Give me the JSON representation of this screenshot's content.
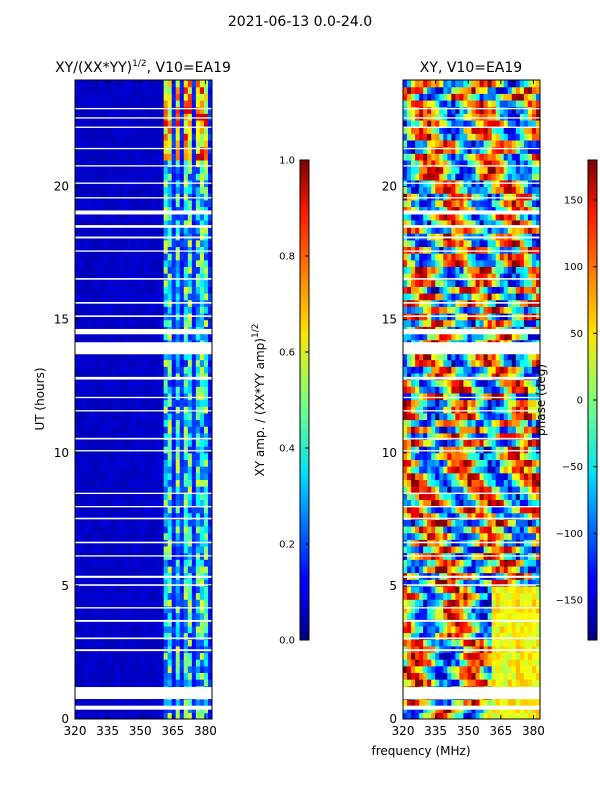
{
  "figure_title": "2021-06-13 0.0-24.0",
  "shared_xlabel": "frequency (MHz)",
  "colors": {
    "frame": "#000000",
    "gap": "#ffffff",
    "background_low": "#00008b"
  },
  "chart_data": [
    {
      "type": "heatmap",
      "title_prefix": "XY/(XX*YY)",
      "title_sup": "1/2",
      "title_suffix": ", V10=EA19",
      "xlabel": "",
      "ylabel": "UT (hours)",
      "xlim": [
        320,
        383
      ],
      "ylim": [
        0,
        24
      ],
      "xticks": [
        320,
        335,
        350,
        365,
        380
      ],
      "yticks": [
        0,
        5,
        10,
        15,
        20
      ],
      "colormap": "jet",
      "colorbar": {
        "label_prefix": "XY amp. / (XX*YY amp)",
        "label_sup": "1/2",
        "range": [
          0.0,
          1.0
        ],
        "ticks": [
          "0.0",
          "0.2",
          "0.4",
          "0.6",
          "0.8",
          "1.0"
        ]
      },
      "description_values": {
        "low_band_mhz": [
          320,
          360
        ],
        "low_band_level": 0.05,
        "high_band_mhz": [
          360,
          383
        ],
        "high_band_level_range": [
          0.15,
          0.95
        ],
        "channel_blocks_mhz": [
          [
            361,
            364
          ],
          [
            365.5,
            368.5
          ],
          [
            370,
            373.5
          ],
          [
            375,
            378.5
          ],
          [
            379.5,
            382
          ]
        ]
      }
    },
    {
      "type": "heatmap",
      "title": "XY, V10=EA19",
      "xlabel": "",
      "ylabel": "",
      "xlim": [
        320,
        383
      ],
      "ylim": [
        0,
        24
      ],
      "xticks": [
        320,
        335,
        350,
        365,
        380
      ],
      "yticks": [
        0,
        5,
        10,
        15,
        20
      ],
      "colormap": "jet",
      "colorbar": {
        "label": "phase (deg)",
        "range": [
          -180,
          180
        ],
        "ticks": [
          "150",
          "100",
          "50",
          "0",
          "−50",
          "−100",
          "−150"
        ],
        "tick_values": [
          150,
          100,
          50,
          0,
          -50,
          -100,
          -150
        ]
      }
    }
  ],
  "flagged_gaps_hours": [
    [
      0.35,
      0.5
    ],
    [
      0.75,
      1.2
    ],
    [
      2.55,
      2.62
    ],
    [
      3.0,
      3.06
    ],
    [
      3.65,
      3.72
    ],
    [
      4.15,
      4.2
    ],
    [
      5.0,
      5.06
    ],
    [
      5.3,
      5.38
    ],
    [
      6.1,
      6.15
    ],
    [
      6.6,
      6.66
    ],
    [
      7.5,
      7.56
    ],
    [
      7.95,
      8.0
    ],
    [
      8.45,
      8.5
    ],
    [
      10.05,
      10.1
    ],
    [
      10.5,
      10.56
    ],
    [
      11.55,
      11.6
    ],
    [
      12.05,
      12.1
    ],
    [
      12.75,
      12.85
    ],
    [
      13.7,
      14.15
    ],
    [
      14.45,
      14.65
    ],
    [
      15.1,
      15.16
    ],
    [
      15.6,
      15.66
    ],
    [
      16.5,
      16.56
    ],
    [
      17.55,
      17.6
    ],
    [
      18.05,
      18.12
    ],
    [
      18.45,
      18.55
    ],
    [
      18.95,
      19.1
    ],
    [
      19.55,
      19.6
    ],
    [
      20.1,
      20.15
    ],
    [
      20.75,
      20.8
    ],
    [
      21.4,
      21.45
    ],
    [
      22.2,
      22.25
    ],
    [
      22.55,
      22.6
    ],
    [
      22.9,
      22.95
    ]
  ]
}
